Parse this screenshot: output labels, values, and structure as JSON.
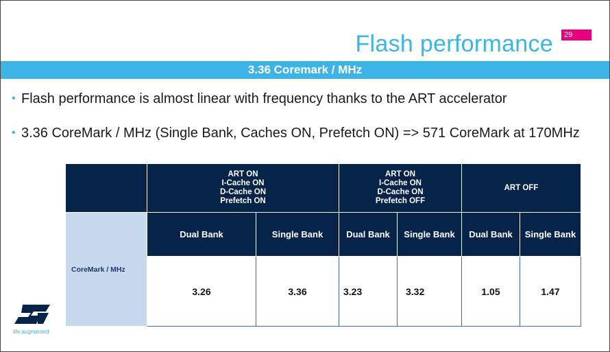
{
  "slide": {
    "title": "Flash performance",
    "page_number": "29",
    "subtitle": "3.36 Coremark / MHz",
    "bullets": [
      "Flash performance is almost linear with frequency thanks to the ART accelerator",
      "3.36 CoreMark / MHz (Single Bank, Caches ON, Prefetch ON) => 571 CoreMark at 170MHz"
    ]
  },
  "table": {
    "groups": [
      {
        "lines": [
          "ART ON",
          "I-Cache ON",
          "D-Cache ON",
          "Prefetch ON"
        ]
      },
      {
        "lines": [
          "ART ON",
          "I-Cache ON",
          "D-Cache ON",
          "Prefetch OFF"
        ]
      },
      {
        "lines": [
          "ART OFF"
        ]
      }
    ],
    "sub_headers": [
      "Dual Bank",
      "Single Bank",
      "Dual Bank",
      "Single Bank",
      "Dual Bank",
      "Single Bank"
    ],
    "row_label": "CoreMark / MHz",
    "values": [
      "3.26",
      "3.36",
      "3.23",
      "3.32",
      "1.05",
      "1.47"
    ]
  },
  "logo": {
    "tagline": "life.augmented"
  },
  "colors": {
    "accent": "#3cb4e5",
    "navy": "#06234a",
    "page_badge": "#e6007e",
    "row_label_bg": "#c7d9ee"
  }
}
